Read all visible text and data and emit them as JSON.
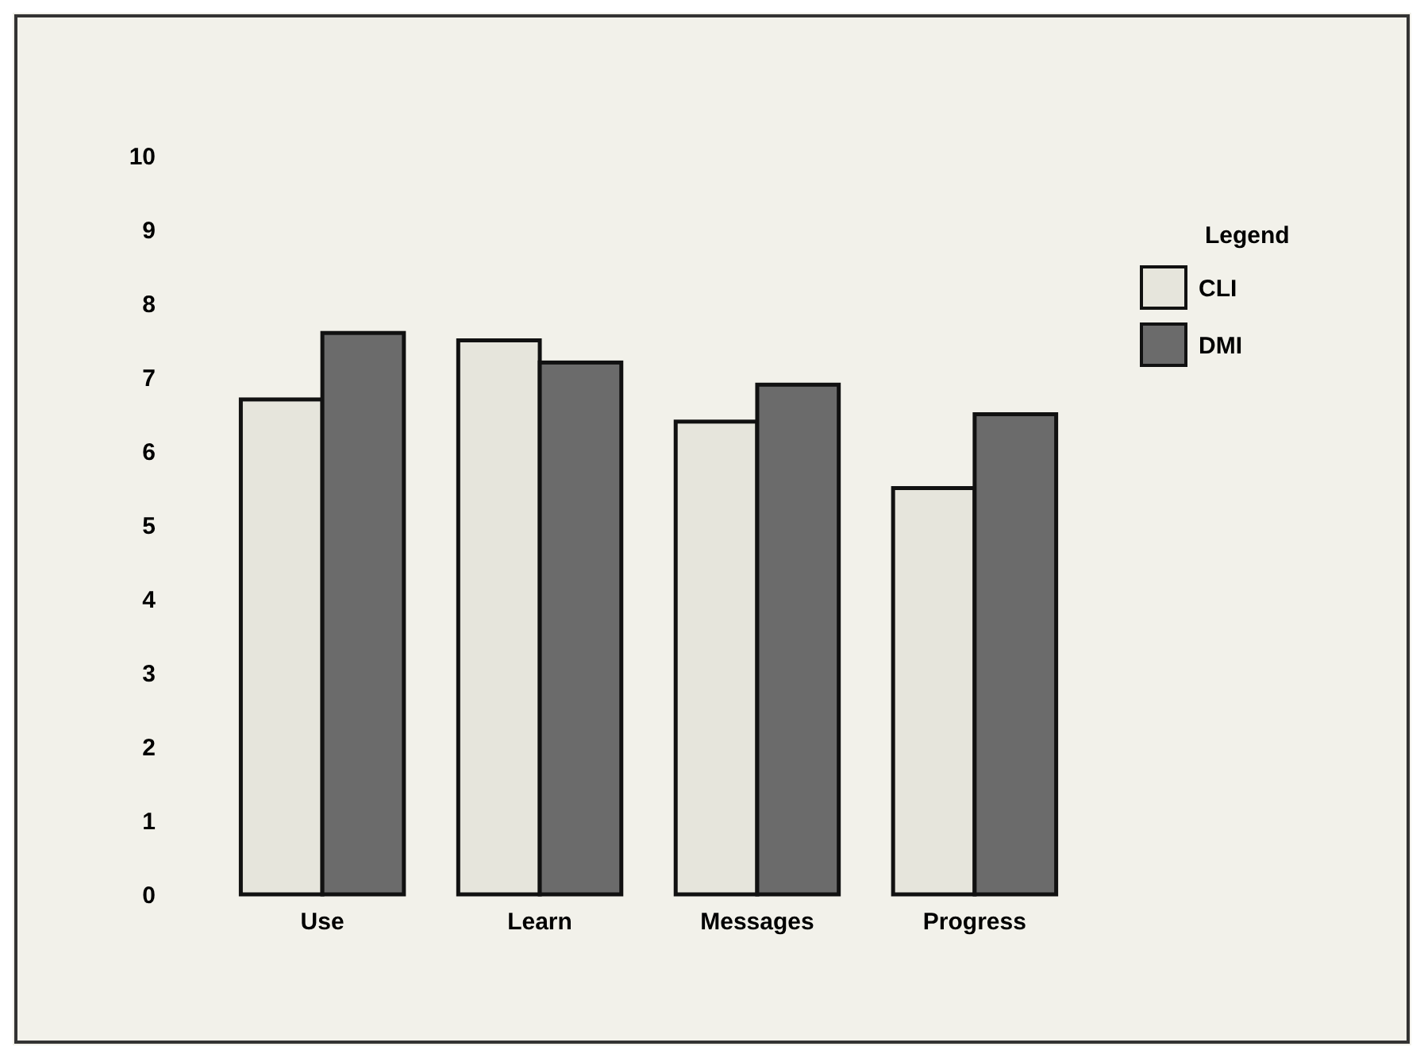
{
  "chart_data": {
    "type": "bar",
    "categories": [
      "Use",
      "Learn",
      "Messages",
      "Progress"
    ],
    "series": [
      {
        "name": "CLI",
        "color": "#e6e5dc",
        "values": [
          6.7,
          7.5,
          6.4,
          5.5
        ]
      },
      {
        "name": "DMI",
        "color": "#6b6b6b",
        "values": [
          7.6,
          7.2,
          6.9,
          6.5
        ]
      }
    ],
    "ylim": [
      0,
      10
    ],
    "yticks": [
      0,
      1,
      2,
      3,
      4,
      5,
      6,
      7,
      8,
      9,
      10
    ],
    "legend": "top right",
    "legend_title": "Legend",
    "grid": false
  }
}
